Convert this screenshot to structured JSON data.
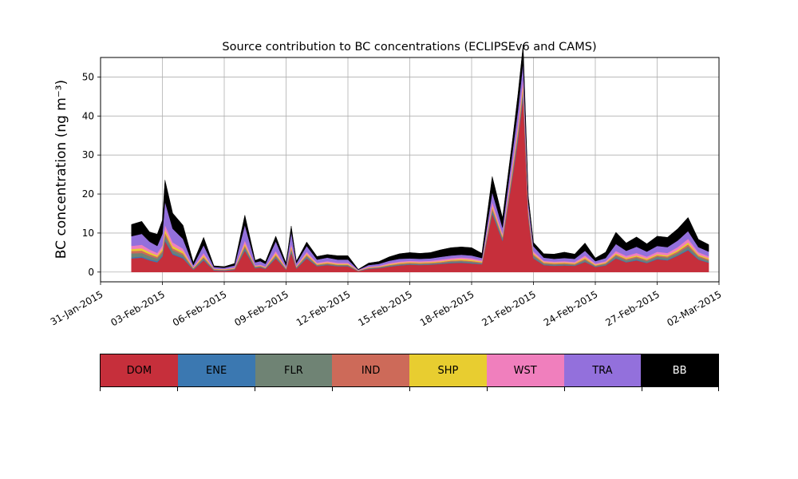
{
  "chart_data": {
    "type": "area",
    "stacked": true,
    "title": "Source contribution to BC concentrations (ECLIPSEv6 and CAMS)",
    "ylabel": "BC concentration (ng m⁻³)",
    "xlabel": "",
    "ylim": [
      -2.5,
      55
    ],
    "yticks": [
      0,
      10,
      20,
      30,
      40,
      50
    ],
    "xlim": [
      "2015-01-31",
      "2015-03-02"
    ],
    "xticks": [
      "31-Jan-2015",
      "03-Feb-2015",
      "06-Feb-2015",
      "09-Feb-2015",
      "12-Feb-2015",
      "15-Feb-2015",
      "18-Feb-2015",
      "21-Feb-2015",
      "24-Feb-2015",
      "27-Feb-2015",
      "02-Mar-2015"
    ],
    "grid": true,
    "x": [
      "2015-02-01 12:00",
      "2015-02-02 00:00",
      "2015-02-02 09:00",
      "2015-02-02 18:00",
      "2015-02-03 00:00",
      "2015-02-03 03:00",
      "2015-02-03 12:00",
      "2015-02-04 00:00",
      "2015-02-04 12:00",
      "2015-02-05 00:00",
      "2015-02-05 12:00",
      "2015-02-06 00:00",
      "2015-02-06 12:00",
      "2015-02-07 00:00",
      "2015-02-07 12:00",
      "2015-02-07 18:00",
      "2015-02-08 00:00",
      "2015-02-08 12:00",
      "2015-02-09 00:00",
      "2015-02-09 06:00",
      "2015-02-09 12:00",
      "2015-02-10 00:00",
      "2015-02-10 12:00",
      "2015-02-11 00:00",
      "2015-02-11 12:00",
      "2015-02-12 00:00",
      "2015-02-12 12:00",
      "2015-02-13 00:00",
      "2015-02-13 12:00",
      "2015-02-14 00:00",
      "2015-02-14 12:00",
      "2015-02-15 00:00",
      "2015-02-15 12:00",
      "2015-02-16 00:00",
      "2015-02-16 12:00",
      "2015-02-17 00:00",
      "2015-02-17 12:00",
      "2015-02-18 00:00",
      "2015-02-18 12:00",
      "2015-02-19 00:00",
      "2015-02-19 12:00",
      "2015-02-20 00:00",
      "2015-02-20 06:00",
      "2015-02-20 12:00",
      "2015-02-20 18:00",
      "2015-02-21 00:00",
      "2015-02-21 12:00",
      "2015-02-22 00:00",
      "2015-02-22 12:00",
      "2015-02-23 00:00",
      "2015-02-23 12:00",
      "2015-02-24 00:00",
      "2015-02-24 12:00",
      "2015-02-25 00:00",
      "2015-02-25 12:00",
      "2015-02-26 00:00",
      "2015-02-26 12:00",
      "2015-02-27 00:00",
      "2015-02-27 12:00",
      "2015-02-28 00:00",
      "2015-02-28 12:00",
      "2015-03-01 00:00",
      "2015-03-01 12:00"
    ],
    "series": [
      {
        "name": "DOM",
        "color": "#c62f3b",
        "values": [
          3.5,
          3.7,
          3.0,
          2.5,
          4.0,
          8.0,
          4.5,
          3.5,
          0.6,
          3.0,
          0.4,
          0.3,
          0.6,
          5.5,
          1.0,
          1.2,
          0.8,
          3.5,
          0.6,
          5.0,
          0.9,
          3.5,
          1.5,
          1.8,
          1.5,
          1.5,
          0.2,
          0.8,
          1.0,
          1.4,
          1.7,
          1.9,
          1.8,
          1.9,
          2.1,
          2.3,
          2.4,
          2.2,
          2.0,
          15.0,
          8.0,
          25.0,
          34.0,
          45.0,
          14.0,
          3.5,
          1.8,
          1.6,
          1.7,
          1.6,
          2.6,
          1.3,
          1.7,
          3.5,
          2.5,
          3.0,
          2.3,
          3.3,
          3.0,
          4.2,
          5.6,
          3.2,
          2.4
        ]
      },
      {
        "name": "ENE",
        "color": "#3b78b1",
        "values": [
          0.3,
          0.3,
          0.3,
          0.3,
          0.3,
          0.4,
          0.3,
          0.3,
          0.1,
          0.2,
          0.1,
          0.1,
          0.1,
          0.3,
          0.1,
          0.1,
          0.1,
          0.2,
          0.1,
          0.3,
          0.1,
          0.2,
          0.1,
          0.1,
          0.1,
          0.1,
          0.05,
          0.1,
          0.1,
          0.1,
          0.1,
          0.1,
          0.1,
          0.1,
          0.1,
          0.15,
          0.15,
          0.15,
          0.1,
          0.4,
          0.3,
          0.5,
          0.6,
          0.7,
          0.4,
          0.2,
          0.1,
          0.1,
          0.1,
          0.1,
          0.15,
          0.1,
          0.1,
          0.2,
          0.15,
          0.2,
          0.15,
          0.2,
          0.2,
          0.2,
          0.3,
          0.2,
          0.15
        ]
      },
      {
        "name": "FLR",
        "color": "#6f8374",
        "values": [
          1.0,
          0.9,
          0.8,
          0.7,
          0.7,
          1.0,
          0.8,
          0.6,
          0.2,
          0.4,
          0.1,
          0.1,
          0.1,
          0.6,
          0.2,
          0.2,
          0.1,
          0.4,
          0.1,
          0.5,
          0.2,
          0.4,
          0.2,
          0.2,
          0.2,
          0.2,
          0.05,
          0.1,
          0.1,
          0.2,
          0.2,
          0.2,
          0.2,
          0.2,
          0.2,
          0.3,
          0.3,
          0.3,
          0.2,
          0.6,
          0.4,
          0.7,
          0.8,
          0.9,
          0.5,
          0.5,
          0.3,
          0.3,
          0.3,
          0.2,
          0.4,
          0.2,
          0.3,
          0.5,
          0.4,
          0.5,
          0.4,
          0.5,
          0.5,
          0.5,
          0.7,
          0.5,
          0.4
        ]
      },
      {
        "name": "IND",
        "color": "#cd6a59",
        "values": [
          0.6,
          0.6,
          0.5,
          0.4,
          0.5,
          0.7,
          0.5,
          0.4,
          0.1,
          0.3,
          0.1,
          0.1,
          0.1,
          0.4,
          0.1,
          0.1,
          0.1,
          0.3,
          0.1,
          0.4,
          0.1,
          0.3,
          0.1,
          0.2,
          0.1,
          0.1,
          0.05,
          0.1,
          0.1,
          0.1,
          0.2,
          0.2,
          0.2,
          0.2,
          0.2,
          0.2,
          0.2,
          0.2,
          0.2,
          0.5,
          0.3,
          0.6,
          0.7,
          0.8,
          0.4,
          0.3,
          0.2,
          0.2,
          0.2,
          0.2,
          0.3,
          0.1,
          0.2,
          0.3,
          0.3,
          0.3,
          0.3,
          0.3,
          0.3,
          0.4,
          0.5,
          0.3,
          0.3
        ]
      },
      {
        "name": "SHP",
        "color": "#e8cd30",
        "values": [
          0.5,
          0.6,
          0.5,
          0.4,
          0.5,
          0.8,
          0.6,
          0.5,
          0.1,
          0.4,
          0.1,
          0.1,
          0.1,
          0.5,
          0.1,
          0.1,
          0.1,
          0.4,
          0.1,
          0.4,
          0.1,
          0.3,
          0.2,
          0.2,
          0.2,
          0.2,
          0.05,
          0.1,
          0.1,
          0.2,
          0.2,
          0.2,
          0.2,
          0.2,
          0.2,
          0.2,
          0.3,
          0.3,
          0.2,
          0.5,
          0.3,
          0.6,
          0.7,
          0.8,
          0.4,
          0.3,
          0.2,
          0.2,
          0.2,
          0.2,
          0.3,
          0.2,
          0.2,
          0.3,
          0.3,
          0.3,
          0.3,
          0.3,
          0.3,
          0.4,
          0.5,
          0.3,
          0.3
        ]
      },
      {
        "name": "WST",
        "color": "#f07fbd",
        "values": [
          0.8,
          0.9,
          0.7,
          0.6,
          0.8,
          1.2,
          0.9,
          0.7,
          0.2,
          0.6,
          0.1,
          0.1,
          0.2,
          0.8,
          0.2,
          0.2,
          0.2,
          0.6,
          0.2,
          0.7,
          0.2,
          0.5,
          0.3,
          0.3,
          0.3,
          0.3,
          0.1,
          0.2,
          0.2,
          0.3,
          0.3,
          0.3,
          0.3,
          0.3,
          0.4,
          0.4,
          0.4,
          0.4,
          0.3,
          1.0,
          0.6,
          1.2,
          1.4,
          1.6,
          0.7,
          0.5,
          0.3,
          0.3,
          0.3,
          0.3,
          0.5,
          0.3,
          0.3,
          0.6,
          0.5,
          0.6,
          0.5,
          0.6,
          0.6,
          0.7,
          0.9,
          0.6,
          0.5
        ]
      },
      {
        "name": "TRA",
        "color": "#9370dc",
        "values": [
          2.5,
          2.8,
          2.0,
          1.8,
          3.0,
          6.0,
          3.5,
          2.5,
          0.5,
          2.0,
          0.4,
          0.3,
          0.5,
          4.0,
          0.8,
          0.9,
          0.7,
          2.5,
          0.5,
          3.0,
          0.7,
          1.5,
          0.8,
          0.9,
          0.8,
          0.8,
          0.1,
          0.4,
          0.5,
          0.6,
          0.7,
          0.6,
          0.6,
          0.6,
          0.7,
          0.7,
          0.7,
          0.7,
          0.6,
          2.5,
          1.5,
          3.0,
          3.5,
          4.0,
          1.5,
          1.3,
          0.8,
          0.7,
          0.8,
          0.8,
          1.2,
          0.6,
          0.8,
          1.8,
          1.3,
          1.6,
          1.3,
          1.5,
          1.5,
          1.7,
          2.0,
          1.3,
          1.2
        ]
      },
      {
        "name": "BB",
        "color": "#000000",
        "values": [
          3.0,
          3.2,
          2.5,
          3.0,
          3.5,
          5.5,
          4.0,
          3.5,
          0.7,
          2.0,
          0.3,
          0.3,
          0.5,
          2.5,
          0.5,
          0.7,
          0.6,
          1.3,
          0.6,
          1.5,
          0.5,
          1.0,
          0.8,
          0.8,
          1.0,
          1.0,
          0.1,
          0.5,
          0.6,
          1.0,
          1.3,
          1.5,
          1.4,
          1.5,
          1.8,
          2.0,
          2.0,
          2.0,
          1.2,
          4.0,
          2.5,
          3.0,
          4.0,
          4.5,
          1.5,
          1.0,
          1.0,
          1.2,
          1.5,
          1.2,
          2.0,
          0.8,
          1.5,
          3.0,
          2.0,
          2.5,
          2.0,
          2.5,
          2.5,
          3.0,
          3.5,
          2.0,
          1.8
        ]
      }
    ],
    "legend_position": "below",
    "legend": [
      "DOM",
      "ENE",
      "FLR",
      "IND",
      "SHP",
      "WST",
      "TRA",
      "BB"
    ]
  }
}
